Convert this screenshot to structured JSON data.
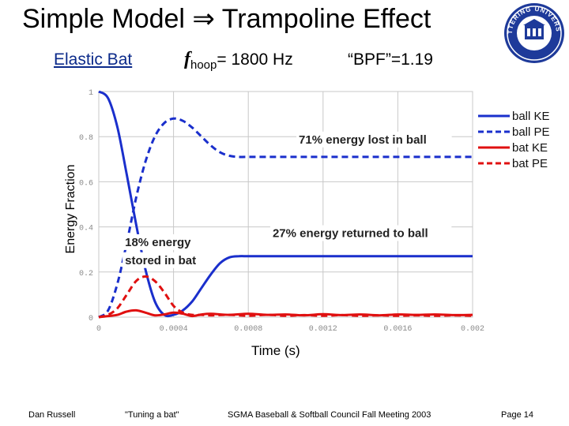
{
  "slide": {
    "title": "Simple Model ⇒ Trampoline Effect",
    "subtitle_left": "Elastic Bat",
    "subtitle_mid_f": "f",
    "subtitle_mid_sub": "hoop",
    "subtitle_mid_rest": "= 1800 Hz",
    "subtitle_right": "“BPF”=1.19",
    "footer": {
      "author": "Dan Russell",
      "talk": "\"Tuning a bat\"",
      "meeting": "SGMA Baseball & Softball Council Fall Meeting 2003",
      "page": "Page 14"
    },
    "logo_text": "KETTERING UNIVERSITY"
  },
  "colors": {
    "blue": "#1a2fcc",
    "red": "#e01010",
    "grid": "#c8c8c8"
  },
  "chart_data": {
    "type": "line",
    "xlabel": "Time (s)",
    "ylabel": "Energy Fraction",
    "xlim": [
      0,
      0.002
    ],
    "ylim": [
      0,
      1
    ],
    "x_ticks": [
      "0",
      "0.0004",
      "0.0008",
      "0.0012",
      "0.0016",
      "0.002"
    ],
    "x_tick_values": [
      0,
      0.0004,
      0.0008,
      0.0012,
      0.0016,
      0.002
    ],
    "y_ticks": [
      "0",
      "0.2",
      "0.4",
      "0.6",
      "0.8",
      "1"
    ],
    "y_tick_values": [
      0,
      0.2,
      0.4,
      0.6,
      0.8,
      1
    ],
    "grid": true,
    "legend_position": "top-right",
    "annotations": [
      {
        "text": "71% energy lost in ball",
        "x": 0.00107,
        "y": 0.77
      },
      {
        "text": "27% energy returned to ball",
        "x": 0.00093,
        "y": 0.355
      },
      {
        "text": "18% energy",
        "x": 0.00014,
        "y": 0.315
      },
      {
        "text": "stored in bat",
        "x": 0.00014,
        "y": 0.235
      }
    ],
    "series": [
      {
        "name": "ball KE",
        "color": "#1a2fcc",
        "dash": "solid",
        "x": [
          0,
          5e-05,
          0.0001,
          0.00015,
          0.0002,
          0.00025,
          0.0003,
          0.00035,
          0.0004,
          0.00045,
          0.0005,
          0.00055,
          0.0006,
          0.00065,
          0.0007,
          0.00075,
          0.0008,
          0.0009,
          0.001,
          0.0015,
          0.002
        ],
        "y": [
          1,
          0.97,
          0.84,
          0.63,
          0.41,
          0.21,
          0.07,
          0.01,
          0.01,
          0.03,
          0.07,
          0.13,
          0.19,
          0.24,
          0.265,
          0.27,
          0.27,
          0.27,
          0.27,
          0.27,
          0.27
        ]
      },
      {
        "name": "ball PE",
        "color": "#1a2fcc",
        "dash": "dashed",
        "x": [
          0,
          5e-05,
          0.0001,
          0.00015,
          0.0002,
          0.00025,
          0.0003,
          0.00035,
          0.0004,
          0.00045,
          0.0005,
          0.00055,
          0.0006,
          0.00065,
          0.0007,
          0.00075,
          0.0008,
          0.001,
          0.0015,
          0.002
        ],
        "y": [
          0,
          0.03,
          0.15,
          0.33,
          0.53,
          0.69,
          0.8,
          0.86,
          0.88,
          0.87,
          0.84,
          0.8,
          0.76,
          0.73,
          0.715,
          0.71,
          0.71,
          0.71,
          0.71,
          0.71
        ]
      },
      {
        "name": "bat KE",
        "color": "#e01010",
        "dash": "solid",
        "x": [
          0,
          5e-05,
          0.0001,
          0.00015,
          0.0002,
          0.00025,
          0.0003,
          0.00035,
          0.0004,
          0.00045,
          0.0005,
          0.00055,
          0.0006,
          0.0007,
          0.0008,
          0.0009,
          0.001,
          0.0011,
          0.0012,
          0.0013,
          0.0014,
          0.0015,
          0.0016,
          0.0017,
          0.0018,
          0.0019,
          0.002
        ],
        "y": [
          0,
          0.005,
          0.01,
          0.025,
          0.03,
          0.02,
          0.008,
          0.012,
          0.02,
          0.015,
          0.005,
          0.012,
          0.015,
          0.01,
          0.015,
          0.01,
          0.012,
          0.008,
          0.013,
          0.009,
          0.012,
          0.008,
          0.012,
          0.01,
          0.012,
          0.009,
          0.01
        ]
      },
      {
        "name": "bat PE",
        "color": "#e01010",
        "dash": "dashed",
        "x": [
          0,
          5e-05,
          0.0001,
          0.00015,
          0.0002,
          0.00025,
          0.0003,
          0.00035,
          0.0004,
          0.00045,
          0.0005,
          0.00055,
          0.0006,
          0.0007,
          0.0008,
          0.0009,
          0.001,
          0.0011,
          0.0012,
          0.0013,
          0.0014,
          0.0015,
          0.0016,
          0.0017,
          0.0018,
          0.0019,
          0.002
        ],
        "y": [
          0,
          0.01,
          0.04,
          0.1,
          0.16,
          0.18,
          0.16,
          0.11,
          0.05,
          0.02,
          0.01,
          0.01,
          0.008,
          0.01,
          0.006,
          0.01,
          0.006,
          0.009,
          0.006,
          0.009,
          0.006,
          0.008,
          0.006,
          0.008,
          0.006,
          0.008,
          0.006
        ]
      }
    ]
  }
}
